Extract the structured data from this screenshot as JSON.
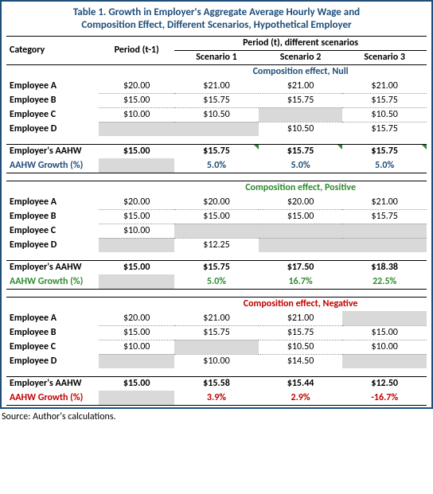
{
  "title_l1": "Table 1. Growth in Employer's Aggregate Average Hourly Wage and",
  "title_l2": "Composition Effect, Different Scenarios, Hypothetical Employer",
  "headers": {
    "category": "Category",
    "period_prev": "Period (t-1)",
    "period_span": "Period (t), different scenarios",
    "sc1": "Scenario 1",
    "sc2": "Scenario 2",
    "sc3": "Scenario 3"
  },
  "labels": {
    "empA": "Employee A",
    "empB": "Employee B",
    "empC": "Employee C",
    "empD": "Employee D",
    "aahw": "Employer's AAHW",
    "growth": "AAHW Growth (%)"
  },
  "comp": {
    "null": "Composition effect, Null",
    "pos": "Composition effect, Positive",
    "neg": "Composition effect, Negative"
  },
  "colors": {
    "frame": "#1f4e79",
    "null": "#1f4e79",
    "pos": "#2e8b2e",
    "neg": "#c00000",
    "shade": "#d9d9d9"
  },
  "null_block": {
    "prev": {
      "A": "$20.00",
      "B": "$15.00",
      "C": "$10.00",
      "D": ""
    },
    "s1": {
      "A": "$21.00",
      "B": "$15.75",
      "C": "$10.50",
      "D": ""
    },
    "s2": {
      "A": "$21.00",
      "B": "$15.75",
      "C": "",
      "D": "$10.50"
    },
    "s3": {
      "A": "$21.00",
      "B": "$15.75",
      "C": "$10.50",
      "D": "$15.75"
    },
    "aahw": {
      "prev": "$15.00",
      "s1": "$15.75",
      "s2": "$15.75",
      "s3": "$15.75"
    },
    "growth": {
      "s1": "5.0%",
      "s2": "5.0%",
      "s3": "5.0%"
    }
  },
  "pos_block": {
    "prev": {
      "A": "$20.00",
      "B": "$15.00",
      "C": "$10.00",
      "D": ""
    },
    "s1": {
      "A": "$20.00",
      "B": "$15.00",
      "C": "",
      "D": "$12.25"
    },
    "s2": {
      "A": "$20.00",
      "B": "$15.00",
      "C": "",
      "D": ""
    },
    "s3": {
      "A": "$21.00",
      "B": "$15.75",
      "C": "",
      "D": ""
    },
    "aahw": {
      "prev": "$15.00",
      "s1": "$15.75",
      "s2": "$17.50",
      "s3": "$18.38"
    },
    "growth": {
      "s1": "5.0%",
      "s2": "16.7%",
      "s3": "22.5%"
    }
  },
  "neg_block": {
    "prev": {
      "A": "$20.00",
      "B": "$15.00",
      "C": "$10.00",
      "D": ""
    },
    "s1": {
      "A": "$21.00",
      "B": "$15.75",
      "C": "",
      "D": "$10.00"
    },
    "s2": {
      "A": "$21.00",
      "B": "$15.75",
      "C": "$10.50",
      "D": "$14.50"
    },
    "s3": {
      "A": "",
      "B": "$15.00",
      "C": "$10.00",
      "D": ""
    },
    "aahw": {
      "prev": "$15.00",
      "s1": "$15.58",
      "s2": "$15.44",
      "s3": "$12.50"
    },
    "growth": {
      "s1": "3.9%",
      "s2": "2.9%",
      "s3": "-16.7%"
    }
  },
  "source": "Source: Author's calculations."
}
